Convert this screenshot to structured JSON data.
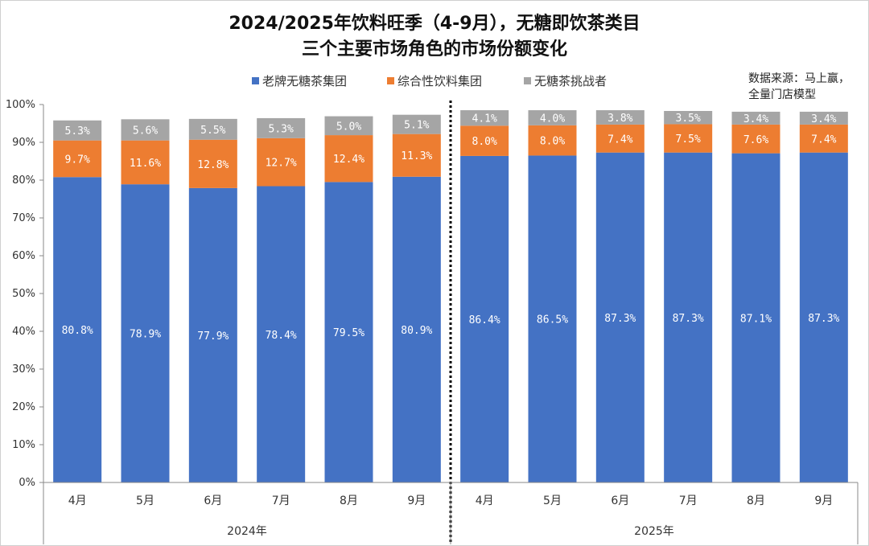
{
  "chart_data": {
    "type": "bar",
    "stacked": true,
    "title_line1": "2024/2025年饮料旺季（4-9月），无糖即饮茶类目",
    "title_line2": "三个主要市场角色的市场份额变化",
    "source_line1": "数据来源：马上赢，",
    "source_line2": "全量门店模型",
    "categories": [
      "4月",
      "5月",
      "6月",
      "7月",
      "8月",
      "9月",
      "4月",
      "5月",
      "6月",
      "7月",
      "8月",
      "9月"
    ],
    "groups": [
      {
        "label": "2024年",
        "count": 6
      },
      {
        "label": "2025年",
        "count": 6
      }
    ],
    "series": [
      {
        "name": "老牌无糖茶集团",
        "color": "#4472C4",
        "values": [
          80.8,
          78.9,
          77.9,
          78.4,
          79.5,
          80.9,
          86.4,
          86.5,
          87.3,
          87.3,
          87.1,
          87.3
        ],
        "labels": [
          "80.8%",
          "78.9%",
          "77.9%",
          "78.4%",
          "79.5%",
          "80.9%",
          "86.4%",
          "86.5%",
          "87.3%",
          "87.3%",
          "87.1%",
          "87.3%"
        ]
      },
      {
        "name": "综合性饮料集团",
        "color": "#ED7D31",
        "values": [
          9.7,
          11.6,
          12.8,
          12.7,
          12.4,
          11.3,
          8.0,
          8.0,
          7.4,
          7.5,
          7.6,
          7.4
        ],
        "labels": [
          "9.7%",
          "11.6%",
          "12.8%",
          "12.7%",
          "12.4%",
          "11.3%",
          "8.0%",
          "8.0%",
          "7.4%",
          "7.5%",
          "7.6%",
          "7.4%"
        ]
      },
      {
        "name": "无糖茶挑战者",
        "color": "#A5A5A5",
        "values": [
          5.3,
          5.6,
          5.5,
          5.3,
          5.0,
          5.1,
          4.1,
          4.0,
          3.8,
          3.5,
          3.4,
          3.4
        ],
        "labels": [
          "5.3%",
          "5.6%",
          "5.5%",
          "5.3%",
          "5.0%",
          "5.1%",
          "4.1%",
          "4.0%",
          "3.8%",
          "3.5%",
          "3.4%",
          "3.4%"
        ]
      }
    ],
    "y_ticks": [
      "0%",
      "10%",
      "20%",
      "30%",
      "40%",
      "50%",
      "60%",
      "70%",
      "80%",
      "90%",
      "100%"
    ],
    "ylim": [
      0,
      100
    ],
    "grid": false,
    "divider": "dotted line between 2024 and 2025"
  }
}
